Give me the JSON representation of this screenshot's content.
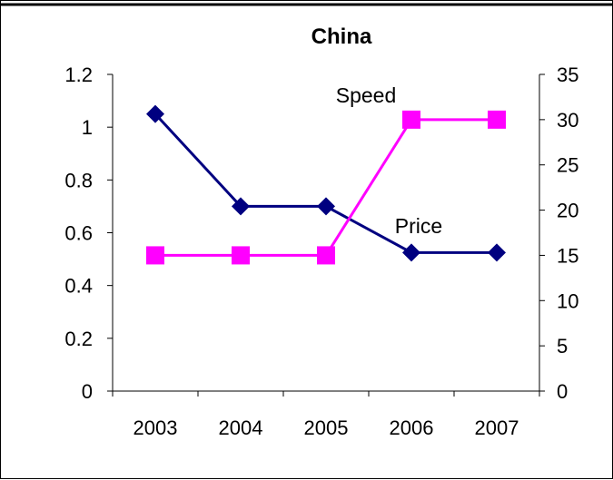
{
  "chart_data": {
    "type": "line",
    "title": "China",
    "categories": [
      "2003",
      "2004",
      "2005",
      "2006",
      "2007"
    ],
    "y_left": {
      "ticks": [
        "0",
        "0.2",
        "0.4",
        "0.6",
        "0.8",
        "1",
        "1.2"
      ],
      "range": [
        0,
        1.2
      ]
    },
    "y_right": {
      "ticks": [
        "0",
        "5",
        "10",
        "15",
        "20",
        "25",
        "30",
        "35"
      ],
      "range": [
        0,
        35
      ]
    },
    "series": [
      {
        "name": "Price",
        "axis": "left",
        "color": "#000080",
        "marker": "diamond",
        "values": [
          1.05,
          0.7,
          0.7,
          0.525,
          0.525
        ]
      },
      {
        "name": "Speed",
        "axis": "right",
        "color": "#FF00FF",
        "marker": "square",
        "values": [
          15,
          15,
          15,
          30,
          30
        ]
      }
    ],
    "grid": false,
    "legend": "none"
  }
}
